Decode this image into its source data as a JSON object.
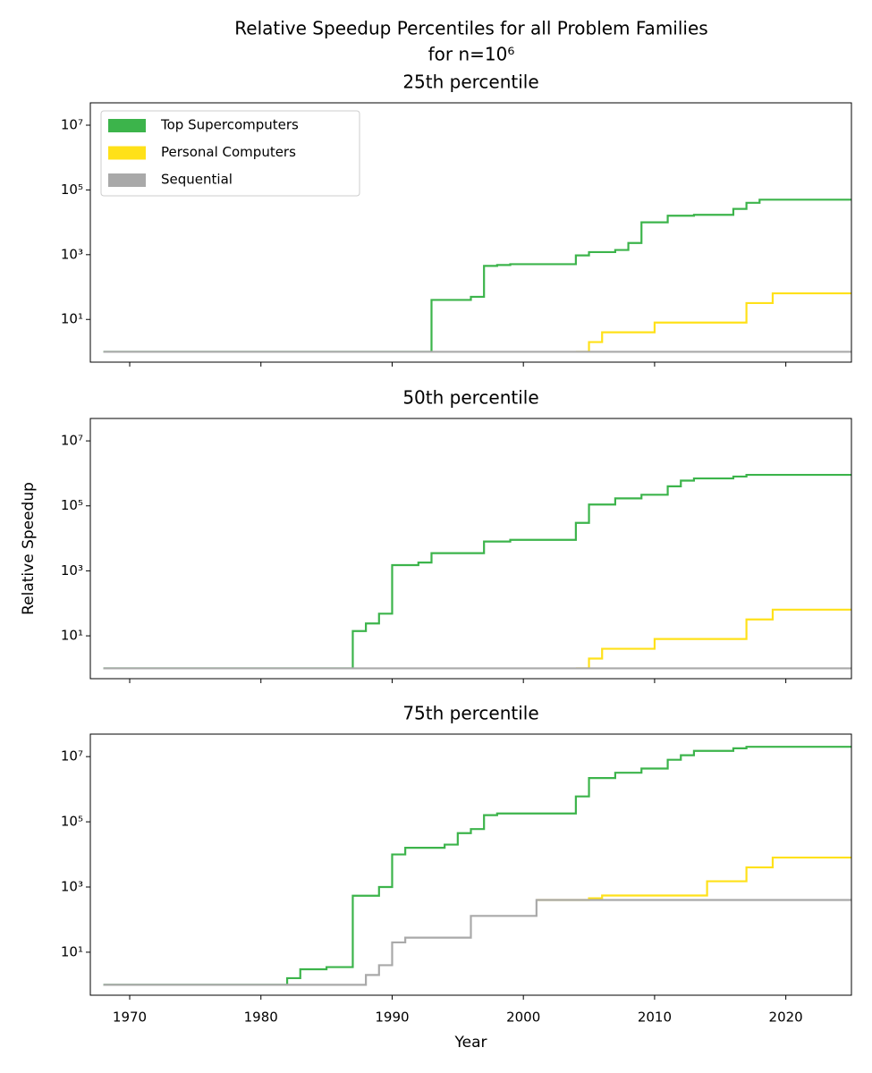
{
  "title": [
    "Relative Speedup Percentiles for all Problem Families",
    "for n=10⁶"
  ],
  "chart_data": [
    {
      "type": "line",
      "step": "post",
      "title": "25th percentile",
      "log_y": true,
      "legend": "upper left",
      "xlim": [
        1967,
        2025
      ],
      "ylim": [
        0.48,
        49000000
      ],
      "xticks": [
        1970,
        1980,
        1990,
        2000,
        2010,
        2020
      ],
      "yticks": [
        {
          "value": 10,
          "label": "10¹"
        },
        {
          "value": 1000,
          "label": "10³"
        },
        {
          "value": 100000,
          "label": "10⁵"
        },
        {
          "value": 10000000,
          "label": "10⁷"
        }
      ],
      "series": [
        {
          "name": "Top Supercomputers",
          "color": "#3cb44b",
          "x": [
            1968,
            1993,
            1996,
            1997,
            1998,
            1999,
            2004,
            2005,
            2007,
            2008,
            2009,
            2011,
            2013,
            2016,
            2017,
            2018,
            2025
          ],
          "values": [
            1,
            40,
            50,
            450,
            480,
            510,
            950,
            1200,
            1400,
            2300,
            10000,
            16000,
            17000,
            26000,
            40000,
            50000,
            50000
          ]
        },
        {
          "name": "Personal Computers",
          "color": "#ffe119",
          "x": [
            2004,
            2005,
            2006,
            2010,
            2017,
            2019,
            2025
          ],
          "values": [
            1,
            2,
            4,
            8,
            32,
            64,
            64
          ]
        },
        {
          "name": "Sequential",
          "color": "#a9a9a9",
          "x": [
            1968,
            2025
          ],
          "values": [
            1,
            1
          ]
        }
      ]
    },
    {
      "type": "line",
      "step": "post",
      "title": "50th percentile",
      "log_y": true,
      "ylabel": "Relative Speedup",
      "xlim": [
        1967,
        2025
      ],
      "ylim": [
        0.48,
        49000000
      ],
      "xticks": [
        1970,
        1980,
        1990,
        2000,
        2010,
        2020
      ],
      "yticks": [
        {
          "value": 10,
          "label": "10¹"
        },
        {
          "value": 1000,
          "label": "10³"
        },
        {
          "value": 100000,
          "label": "10⁵"
        },
        {
          "value": 10000000,
          "label": "10⁷"
        }
      ],
      "series": [
        {
          "name": "Top Supercomputers",
          "color": "#3cb44b",
          "x": [
            1968,
            1987,
            1988,
            1989,
            1990,
            1992,
            1993,
            1997,
            1999,
            2004,
            2005,
            2007,
            2009,
            2011,
            2012,
            2013,
            2016,
            2017,
            2025
          ],
          "values": [
            1,
            14,
            24,
            48,
            1500,
            1800,
            3500,
            8000,
            9000,
            30000,
            110000,
            170000,
            220000,
            400000,
            600000,
            700000,
            800000,
            900000,
            900000
          ]
        },
        {
          "name": "Personal Computers",
          "color": "#ffe119",
          "x": [
            2004,
            2005,
            2006,
            2010,
            2017,
            2019,
            2025
          ],
          "values": [
            1,
            2,
            4,
            8,
            32,
            64,
            64
          ]
        },
        {
          "name": "Sequential",
          "color": "#a9a9a9",
          "x": [
            1968,
            2025
          ],
          "values": [
            1,
            1
          ]
        }
      ]
    },
    {
      "type": "line",
      "step": "post",
      "title": "75th percentile",
      "log_y": true,
      "xlabel": "Year",
      "xlim": [
        1967,
        2025
      ],
      "ylim": [
        0.48,
        49000000
      ],
      "xticks": [
        1970,
        1980,
        1990,
        2000,
        2010,
        2020
      ],
      "yticks": [
        {
          "value": 10,
          "label": "10¹"
        },
        {
          "value": 1000,
          "label": "10³"
        },
        {
          "value": 100000,
          "label": "10⁵"
        },
        {
          "value": 10000000,
          "label": "10⁷"
        }
      ],
      "series": [
        {
          "name": "Top Supercomputers",
          "color": "#3cb44b",
          "x": [
            1968,
            1982,
            1983,
            1985,
            1987,
            1989,
            1990,
            1991,
            1994,
            1995,
            1996,
            1997,
            1998,
            2004,
            2005,
            2007,
            2009,
            2011,
            2012,
            2013,
            2016,
            2017,
            2025
          ],
          "values": [
            1,
            1.6,
            3,
            3.5,
            540,
            1000,
            10000,
            16000,
            20000,
            45000,
            60000,
            160000,
            180000,
            600000,
            2200000,
            3200000,
            4300000,
            8000000,
            11000000,
            15000000,
            18000000,
            20000000,
            20000000
          ]
        },
        {
          "name": "Personal Computers",
          "color": "#ffe119",
          "x": [
            2001,
            2005,
            2006,
            2014,
            2017,
            2019,
            2025
          ],
          "values": [
            400,
            450,
            550,
            1500,
            4000,
            8000,
            8000
          ]
        },
        {
          "name": "Sequential",
          "color": "#a9a9a9",
          "x": [
            1968,
            1988,
            1989,
            1990,
            1991,
            1996,
            2001,
            2025
          ],
          "values": [
            1,
            2,
            4,
            20,
            28,
            130,
            400,
            400
          ]
        }
      ]
    }
  ]
}
